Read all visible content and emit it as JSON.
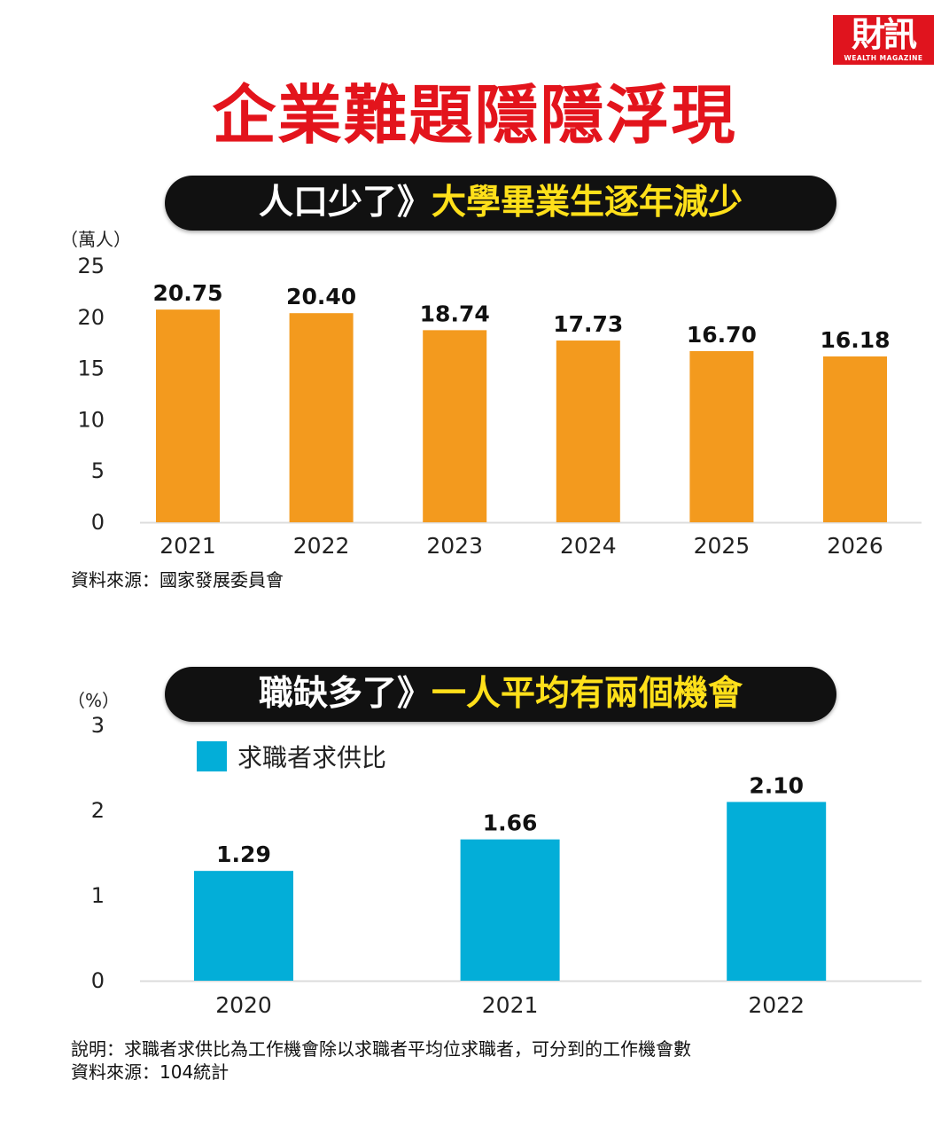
{
  "logo": {
    "main": "財訊",
    "sub": "WEALTH MAGAZINE"
  },
  "title": "企業難題隱隱浮現",
  "section1": {
    "heading_white": "人口少了》",
    "heading_yellow": "大學畢業生逐年減少",
    "unit": "（萬人）",
    "source": "資料來源：國家發展委員會"
  },
  "section2": {
    "heading_white": "職缺多了》",
    "heading_yellow": "一人平均有兩個機會",
    "unit": "（%）",
    "legend": "求職者求供比",
    "note": "說明：求職者求供比為工作機會除以求職者平均位求職者，可分到的工作機會數",
    "source": "資料來源：104統計"
  },
  "colors": {
    "title_red": "#e3141c",
    "pill_bg": "#111111",
    "pill_yellow": "#ffe01a",
    "bar_orange": "#f39a1e",
    "bar_blue": "#03aed8"
  },
  "chart_data": [
    {
      "type": "bar",
      "categories": [
        "2021",
        "2022",
        "2023",
        "2024",
        "2025",
        "2026"
      ],
      "values": [
        20.75,
        20.4,
        18.74,
        17.73,
        16.7,
        16.18
      ],
      "value_labels": [
        "20.75",
        "20.40",
        "18.74",
        "17.73",
        "16.70",
        "16.18"
      ],
      "ylim": [
        0,
        25
      ],
      "yticks": [
        "0",
        "5",
        "10",
        "15",
        "20",
        "25"
      ],
      "ylabel": "（萬人）",
      "grid": false,
      "color": "#f39a1e"
    },
    {
      "type": "bar",
      "categories": [
        "2020",
        "2021",
        "2022"
      ],
      "series": [
        {
          "name": "求職者求供比",
          "values": [
            1.29,
            1.66,
            2.1
          ]
        }
      ],
      "value_labels": [
        "1.29",
        "1.66",
        "2.10"
      ],
      "ylim": [
        0,
        3
      ],
      "yticks": [
        "0",
        "1",
        "2",
        "3"
      ],
      "ylabel": "（%）",
      "legend": "top-left",
      "grid": false,
      "color": "#03aed8"
    }
  ]
}
